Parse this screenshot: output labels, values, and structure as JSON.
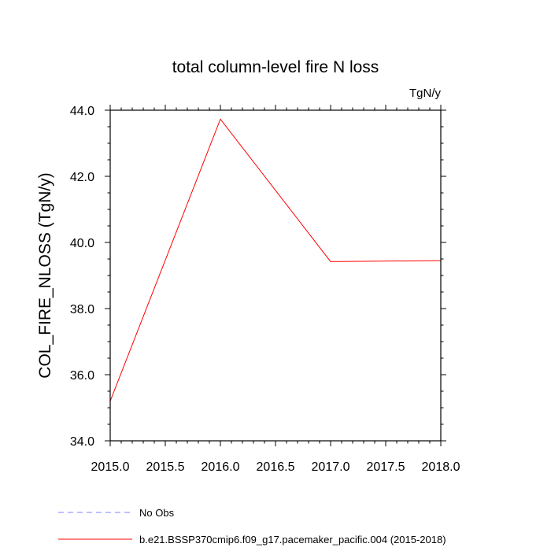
{
  "chart_data": {
    "type": "line",
    "title": "total column-level fire N loss",
    "units_label": "TgN/y",
    "ylabel": "COL_FIRE_NLOSS  (TgN/y)",
    "xlabel": "",
    "xlim": [
      2015.0,
      2018.0
    ],
    "ylim": [
      34.0,
      44.0
    ],
    "x_ticks": [
      2015.0,
      2015.5,
      2016.0,
      2016.5,
      2017.0,
      2017.5,
      2018.0
    ],
    "x_tick_labels": [
      "2015.0",
      "2015.5",
      "2016.0",
      "2016.5",
      "2017.0",
      "2017.5",
      "2018.0"
    ],
    "y_ticks": [
      34.0,
      36.0,
      38.0,
      40.0,
      42.0,
      44.0
    ],
    "y_tick_labels": [
      "34.0",
      "36.0",
      "38.0",
      "40.0",
      "42.0",
      "44.0"
    ],
    "grid": false,
    "legend_position": "bottom",
    "series": [
      {
        "name": "No Obs",
        "color": "#8080ff",
        "dash": "dashed",
        "x": [],
        "y": []
      },
      {
        "name": "b.e21.BSSP370cmip6.f09_g17.pacemaker_pacific.004 (2015-2018)",
        "color": "#ff0000",
        "dash": "solid",
        "x": [
          2015.0,
          2016.0,
          2017.0,
          2018.0
        ],
        "y": [
          35.2,
          43.73,
          39.42,
          39.45
        ]
      }
    ]
  }
}
